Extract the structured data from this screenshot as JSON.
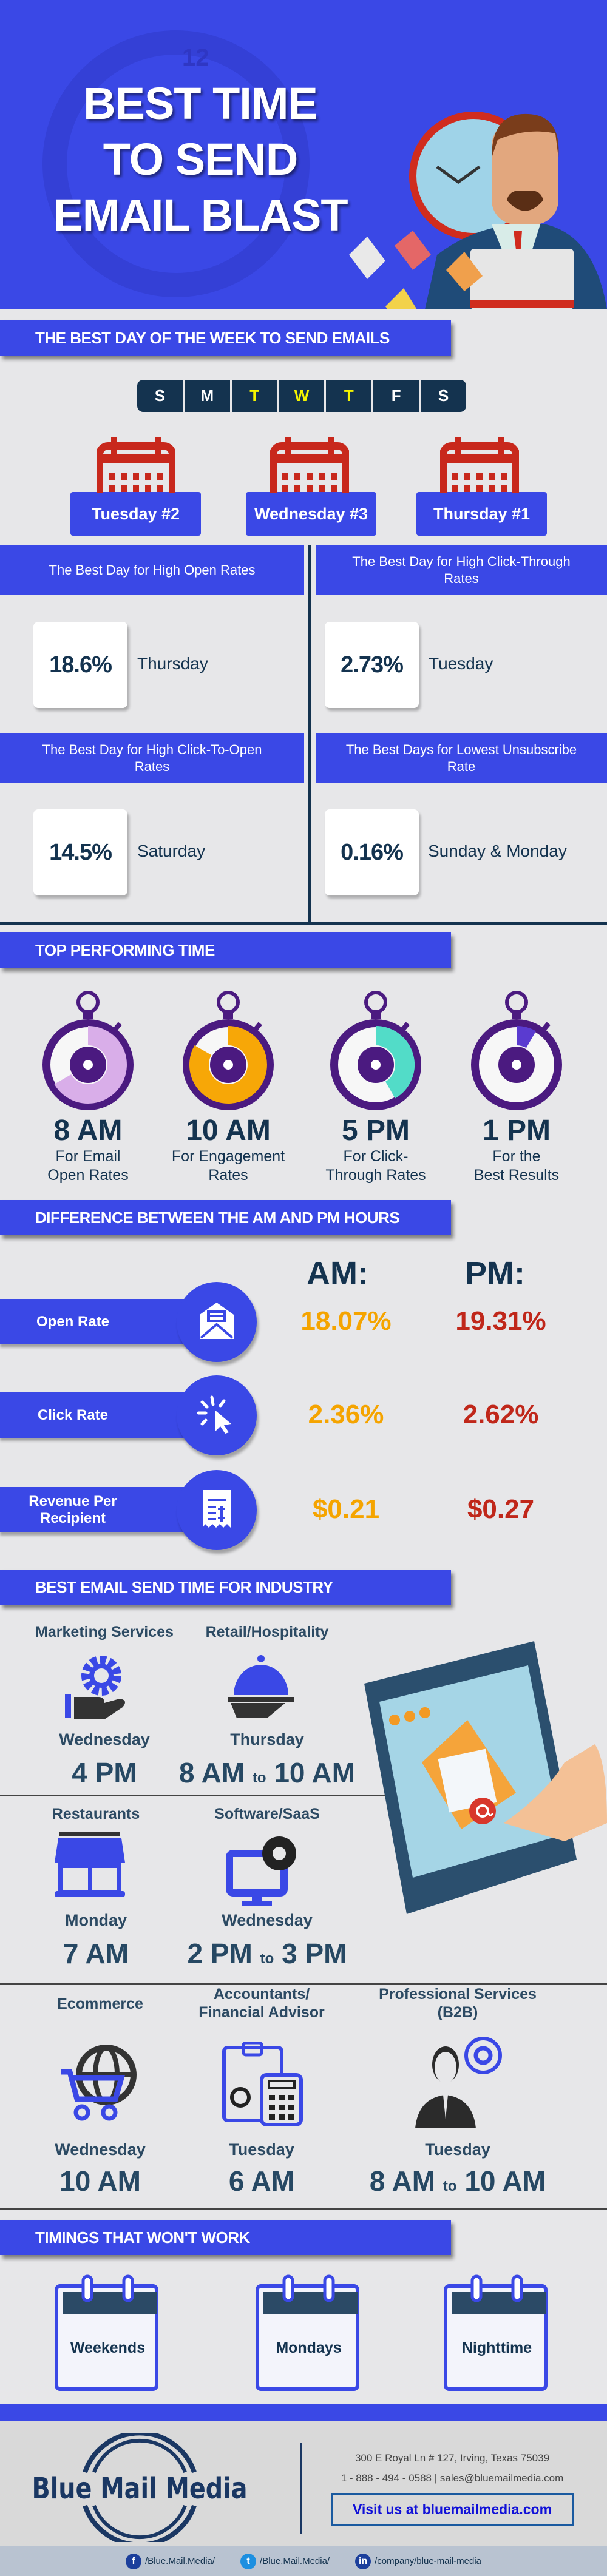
{
  "hero": {
    "title_lines": [
      "BEST TIME",
      "TO SEND",
      "EMAIL BLAST"
    ],
    "clock_number": "12"
  },
  "best_day": {
    "section_title": "THE BEST DAY OF THE WEEK TO SEND EMAILS",
    "week_days": [
      {
        "letter": "S",
        "highlight": false
      },
      {
        "letter": "M",
        "highlight": false
      },
      {
        "letter": "T",
        "highlight": true
      },
      {
        "letter": "W",
        "highlight": true
      },
      {
        "letter": "T",
        "highlight": true
      },
      {
        "letter": "F",
        "highlight": false
      },
      {
        "letter": "S",
        "highlight": false
      }
    ],
    "ranked": [
      "Tuesday #2",
      "Wednesday #3",
      "Thursday #1"
    ],
    "stats": [
      {
        "heading": "The Best Day for High Open Rates",
        "value": "18.6%",
        "day": "Thursday"
      },
      {
        "heading": "The Best Day for High Click-Through Rates",
        "value": "2.73%",
        "day": "Tuesday"
      },
      {
        "heading": "The Best Day for High Click-To-Open Rates",
        "value": "14.5%",
        "day": "Saturday"
      },
      {
        "heading": "The Best Days for Lowest Unsubscribe Rate",
        "value": "0.16%",
        "day": "Sunday & Monday"
      }
    ]
  },
  "top_time": {
    "section_title": "TOP PERFORMING TIME",
    "items": [
      {
        "time": "8 AM",
        "desc_1": "For Email",
        "desc_2": "Open Rates",
        "hours": 8,
        "color": "#d9aee9"
      },
      {
        "time": "10 AM",
        "desc_1": "For Engagement",
        "desc_2": "Rates",
        "hours": 10,
        "color": "#f7a707"
      },
      {
        "time": "5 PM",
        "desc_1": "For Click-",
        "desc_2": "Through Rates",
        "hours": 5,
        "color": "#52dcc8"
      },
      {
        "time": "1 PM",
        "desc_1": "For the",
        "desc_2": "Best Results",
        "hours": 1,
        "color": "#5a3bd0"
      }
    ]
  },
  "am_pm": {
    "section_title": "DIFFERENCE BETWEEN THE AM AND PM HOURS",
    "am_label": "AM:",
    "pm_label": "PM:",
    "rows": [
      {
        "label": "Open Rate",
        "icon": "open-envelope-icon",
        "am": "18.07%",
        "pm": "19.31%"
      },
      {
        "label": "Click Rate",
        "icon": "cursor-click-icon",
        "am": "2.36%",
        "pm": "2.62%"
      },
      {
        "label": "Revenue Per Recipient",
        "icon": "receipt-icon",
        "am": "$0.21",
        "pm": "$0.27"
      }
    ]
  },
  "industry": {
    "section_title": "BEST EMAIL SEND TIME FOR INDUSTRY",
    "to": "to",
    "items": [
      {
        "name": "Marketing Services",
        "day": "Wednesday",
        "time_from": "4 PM",
        "time_to": ""
      },
      {
        "name": "Retail/Hospitality",
        "day": "Thursday",
        "time_from": "8 AM",
        "time_to": "10 AM"
      },
      {
        "name": "Restaurants",
        "day": "Monday",
        "time_from": "7 AM",
        "time_to": ""
      },
      {
        "name": "Software/SaaS",
        "day": "Wednesday",
        "time_from": "2 PM",
        "time_to": "3 PM"
      },
      {
        "name": "Ecommerce",
        "day": "Wednesday",
        "time_from": "10 AM",
        "time_to": ""
      },
      {
        "name": "Accountants/ Financial Advisor",
        "day": "Tuesday",
        "time_from": "6 AM",
        "time_to": ""
      },
      {
        "name": "Professional Services (B2B)",
        "day": "Tuesday",
        "time_from": "8 AM",
        "time_to": "10 AM"
      }
    ]
  },
  "wont_work": {
    "section_title": "TIMINGS THAT WON'T WORK",
    "items": [
      "Weekends",
      "Mondays",
      "Nighttime"
    ]
  },
  "footer": {
    "logo_text": "Blue Mail Media",
    "address": "300 E Royal Ln # 127, Irving, Texas 75039",
    "phone": "1 - 888 - 494 - 0588",
    "email": "sales@bluemailmedia.com",
    "visit": "Visit us at bluemailmedia.com",
    "social": [
      {
        "icon": "facebook-icon",
        "glyph": "f",
        "handle": "/Blue.Mail.Media/",
        "color": "#1c3f9c"
      },
      {
        "icon": "twitter-icon",
        "glyph": "t",
        "handle": "/Blue.Mail.Media/",
        "color": "#1d8fe0"
      },
      {
        "icon": "linkedin-icon",
        "glyph": "in",
        "handle": "/company/blue-mail-media",
        "color": "#1c3f9c"
      }
    ]
  },
  "colors": {
    "brand_blue": "#3a48e6",
    "navy": "#14334f",
    "am": "#f5a400",
    "pm": "#c0271a",
    "highlight_day": "#f4f400",
    "calendar_red": "#c8281c",
    "stopwatch": "#4b1a80"
  }
}
